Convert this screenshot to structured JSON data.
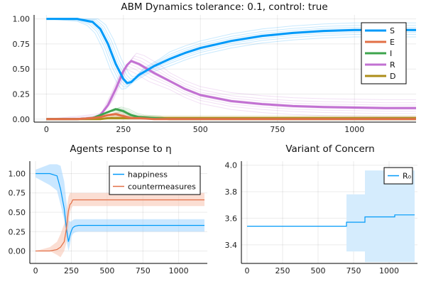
{
  "chart_data": [
    {
      "type": "line",
      "title": "ABM Dynamics tolerance: 0.1, control: true",
      "xlim": [
        -40,
        1200
      ],
      "ylim": [
        -0.03,
        1.04
      ],
      "xticks": [
        0,
        250,
        500,
        750,
        1000
      ],
      "yticks": [
        0.0,
        0.25,
        0.5,
        0.75,
        1.0
      ],
      "xtick_labels": [
        "0",
        "250",
        "500",
        "750",
        "1000"
      ],
      "ytick_labels": [
        "0.00",
        "0.25",
        "0.50",
        "0.75",
        "1.00"
      ],
      "grid": true,
      "legend_position": "top-right",
      "x": [
        0,
        50,
        100,
        150,
        175,
        200,
        225,
        250,
        262,
        275,
        300,
        350,
        400,
        450,
        500,
        600,
        700,
        800,
        900,
        1000,
        1100,
        1200
      ],
      "series": [
        {
          "name": "S",
          "color": "#009af9",
          "values": [
            1.0,
            1.0,
            1.0,
            0.97,
            0.9,
            0.75,
            0.55,
            0.4,
            0.36,
            0.37,
            0.44,
            0.53,
            0.6,
            0.66,
            0.71,
            0.78,
            0.83,
            0.86,
            0.88,
            0.89,
            0.89,
            0.89
          ]
        },
        {
          "name": "E",
          "color": "#e26f46",
          "values": [
            0.0,
            0.0,
            0.0,
            0.01,
            0.02,
            0.04,
            0.05,
            0.03,
            0.02,
            0.01,
            0.01,
            0.0,
            0.0,
            0.0,
            0.0,
            0.0,
            0.0,
            0.0,
            0.0,
            0.0,
            0.0,
            0.0
          ]
        },
        {
          "name": "I",
          "color": "#3da44d",
          "values": [
            0.0,
            0.0,
            0.0,
            0.01,
            0.04,
            0.07,
            0.1,
            0.08,
            0.06,
            0.04,
            0.02,
            0.01,
            0.0,
            0.0,
            0.0,
            0.0,
            0.0,
            0.0,
            0.0,
            0.0,
            0.0,
            0.0
          ]
        },
        {
          "name": "R",
          "color": "#c271d2",
          "values": [
            0.0,
            0.0,
            0.0,
            0.01,
            0.04,
            0.14,
            0.3,
            0.48,
            0.54,
            0.58,
            0.55,
            0.46,
            0.38,
            0.3,
            0.24,
            0.18,
            0.15,
            0.13,
            0.12,
            0.115,
            0.11,
            0.11
          ]
        },
        {
          "name": "D",
          "color": "#ac8d18",
          "values": [
            0.0,
            0.0,
            0.0,
            0.0,
            0.0,
            0.01,
            0.01,
            0.01,
            0.01,
            0.01,
            0.01,
            0.01,
            0.01,
            0.01,
            0.01,
            0.01,
            0.01,
            0.01,
            0.01,
            0.01,
            0.01,
            0.01
          ]
        }
      ]
    },
    {
      "type": "line",
      "title": "Agents response to η",
      "xlim": [
        -40,
        1200
      ],
      "ylim": [
        -0.16,
        1.16
      ],
      "xticks": [
        0,
        250,
        500,
        750,
        1000
      ],
      "yticks": [
        0.0,
        0.25,
        0.5,
        0.75,
        1.0
      ],
      "xtick_labels": [
        "0",
        "250",
        "500",
        "750",
        "1000"
      ],
      "ytick_labels": [
        "0.00",
        "0.25",
        "0.50",
        "0.75",
        "1.00"
      ],
      "grid": true,
      "legend_position": "top-right",
      "x": [
        0,
        100,
        150,
        175,
        200,
        215,
        230,
        240,
        250,
        260,
        275,
        300,
        400,
        500,
        600,
        800,
        1000,
        1180
      ],
      "series": [
        {
          "name": "happiness",
          "color": "#009af9",
          "band_color": "#9fd3ff",
          "values": [
            1.0,
            1.0,
            0.97,
            0.8,
            0.55,
            0.3,
            0.12,
            0.2,
            0.26,
            0.3,
            0.32,
            0.33,
            0.33,
            0.33,
            0.33,
            0.33,
            0.33,
            0.33
          ],
          "lower": [
            0.95,
            0.85,
            0.78,
            0.6,
            0.4,
            0.15,
            0.0,
            0.08,
            0.18,
            0.22,
            0.24,
            0.25,
            0.25,
            0.25,
            0.25,
            0.25,
            0.25,
            0.25
          ],
          "upper": [
            1.05,
            1.12,
            1.12,
            1.1,
            0.9,
            0.65,
            0.4,
            0.38,
            0.38,
            0.4,
            0.41,
            0.41,
            0.41,
            0.41,
            0.41,
            0.41,
            0.41,
            0.41
          ]
        },
        {
          "name": "countermeasures",
          "color": "#e26f46",
          "band_color": "#f7c3ae",
          "values": [
            0.0,
            0.0,
            0.02,
            0.05,
            0.12,
            0.28,
            0.52,
            0.6,
            0.62,
            0.66,
            0.66,
            0.66,
            0.66,
            0.66,
            0.66,
            0.66,
            0.66,
            0.66
          ],
          "lower": [
            0.0,
            0.0,
            -0.05,
            -0.08,
            0.0,
            0.1,
            0.3,
            0.5,
            0.55,
            0.58,
            0.58,
            0.58,
            0.58,
            0.58,
            0.58,
            0.58,
            0.58,
            0.58
          ],
          "upper": [
            0.0,
            0.05,
            0.12,
            0.22,
            0.35,
            0.5,
            0.7,
            0.75,
            0.75,
            0.75,
            0.75,
            0.75,
            0.75,
            0.75,
            0.75,
            0.75,
            0.75,
            0.75
          ]
        }
      ]
    },
    {
      "type": "line",
      "title": "Variant of Concern",
      "xlim": [
        -40,
        1200
      ],
      "ylim": [
        3.26,
        4.03
      ],
      "xticks": [
        0,
        250,
        500,
        750,
        1000
      ],
      "yticks": [
        3.4,
        3.6,
        3.8,
        4.0
      ],
      "xtick_labels": [
        "0",
        "250",
        "500",
        "750",
        "1000"
      ],
      "ytick_labels": [
        "3.4",
        "3.6",
        "3.8",
        "4.0"
      ],
      "grid": true,
      "legend_position": "top-right",
      "series": [
        {
          "name": "R₀",
          "color": "#009af9",
          "band_color": "#d5ecfd",
          "steps": [
            [
              0,
              3.54
            ],
            [
              700,
              3.57
            ],
            [
              830,
              3.61
            ],
            [
              1040,
              3.625
            ],
            [
              1180,
              3.625
            ]
          ],
          "band_steps": [
            [
              700,
              3.35,
              3.78
            ],
            [
              830,
              3.27,
              3.96
            ],
            [
              1180,
              3.27,
              3.96
            ]
          ]
        }
      ]
    }
  ]
}
